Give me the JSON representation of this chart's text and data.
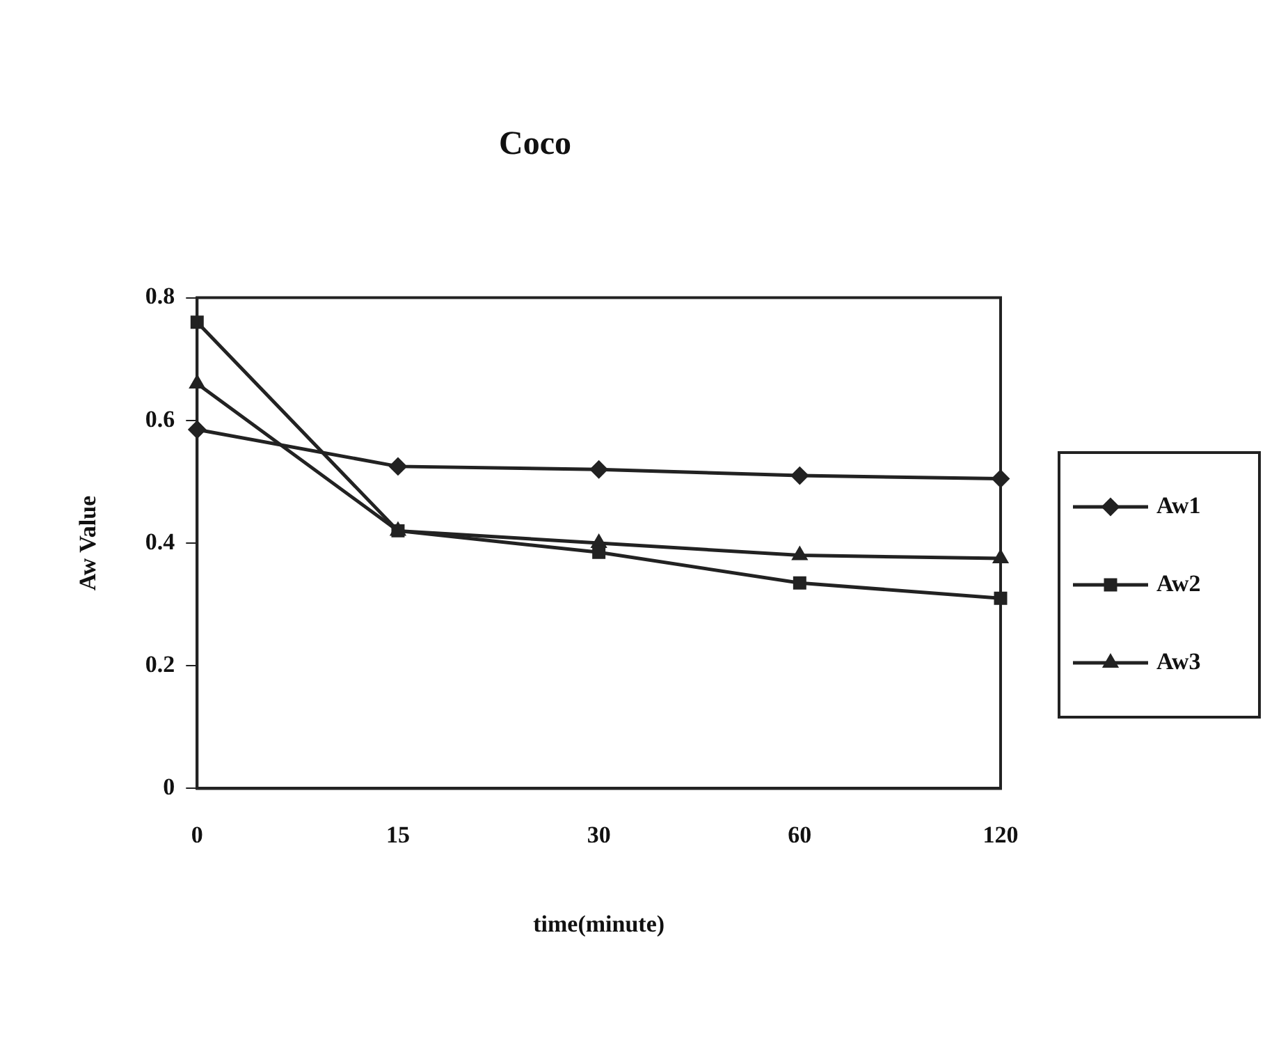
{
  "chart_data": {
    "type": "line",
    "title": "Coco",
    "xlabel": "time(minute)",
    "ylabel": "Aw Value",
    "categories": [
      "0",
      "15",
      "30",
      "60",
      "120"
    ],
    "series": [
      {
        "name": "Aw1",
        "color": "#222222",
        "marker": "diamond",
        "values": [
          0.585,
          0.525,
          0.52,
          0.51,
          0.505
        ]
      },
      {
        "name": "Aw2",
        "color": "#222222",
        "marker": "square",
        "values": [
          0.76,
          0.42,
          0.385,
          0.335,
          0.31
        ]
      },
      {
        "name": "Aw3",
        "color": "#222222",
        "marker": "triangle",
        "values": [
          0.66,
          0.42,
          0.4,
          0.38,
          0.375
        ]
      }
    ],
    "ylim": [
      0,
      0.8
    ],
    "yticks": [
      0,
      0.2,
      0.4,
      0.6,
      0.8
    ],
    "grid": false,
    "legend": "right",
    "line_style": "solid"
  }
}
